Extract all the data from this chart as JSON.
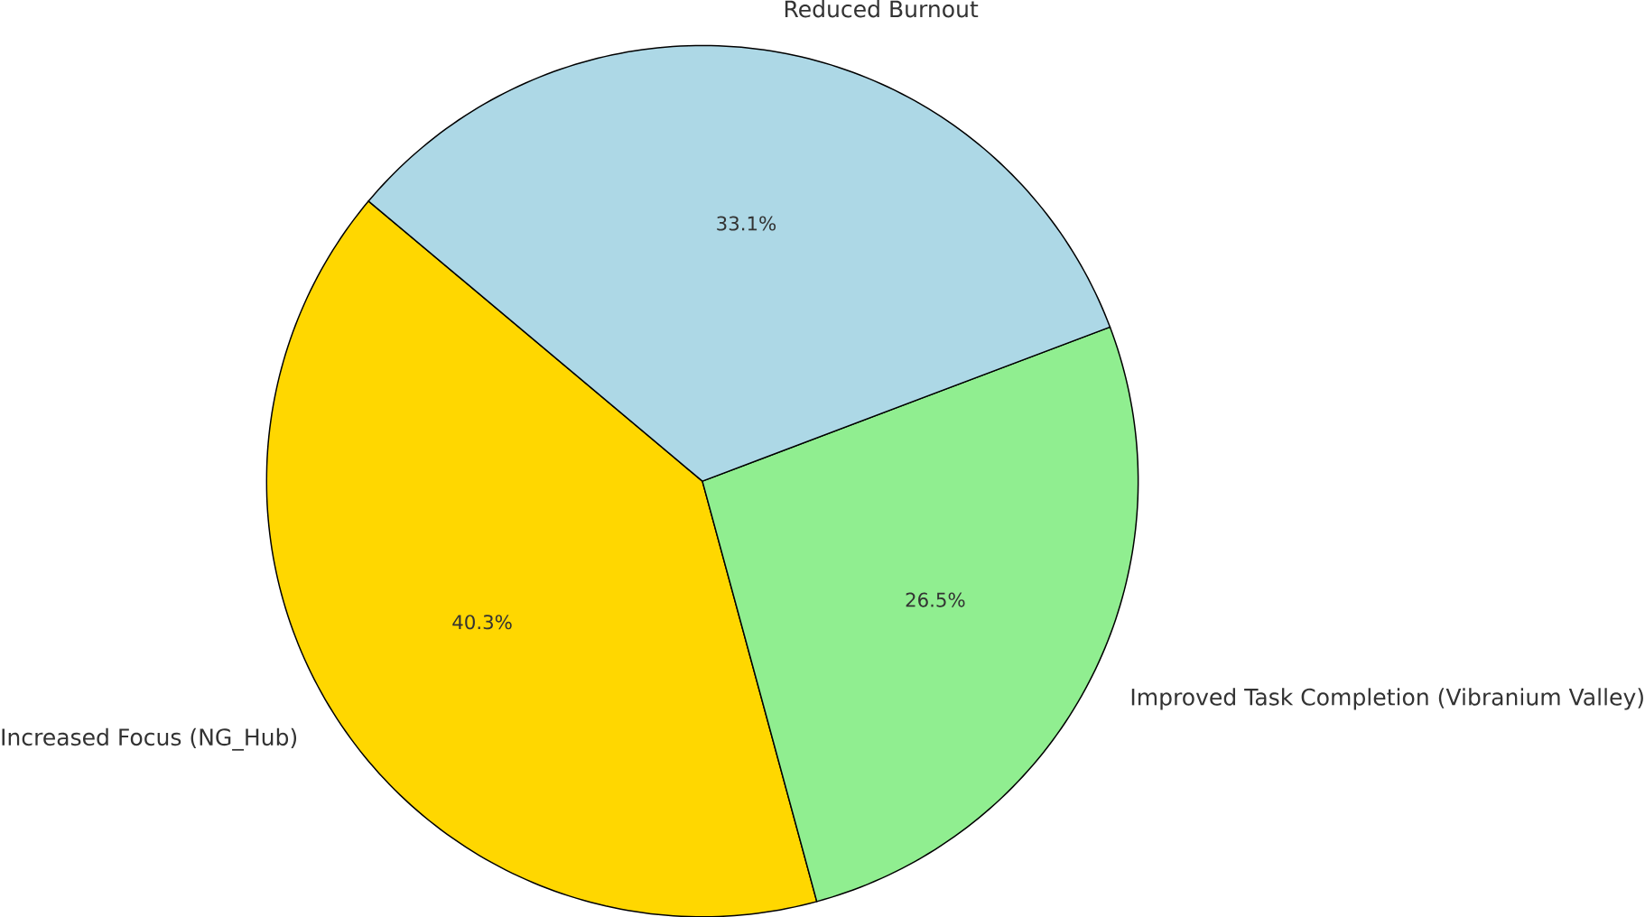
{
  "chart_data": {
    "type": "pie",
    "categories": [
      "Increased Focus (NG_Hub)",
      "Improved Task Completion (Vibranium Valley)",
      "Reduced Burnout"
    ],
    "values": [
      40.3,
      26.5,
      33.1
    ],
    "colors": [
      "#ffd700",
      "#90ee90",
      "#add8e6"
    ],
    "value_labels": [
      "40.3%",
      "26.5%",
      "33.1%"
    ]
  }
}
